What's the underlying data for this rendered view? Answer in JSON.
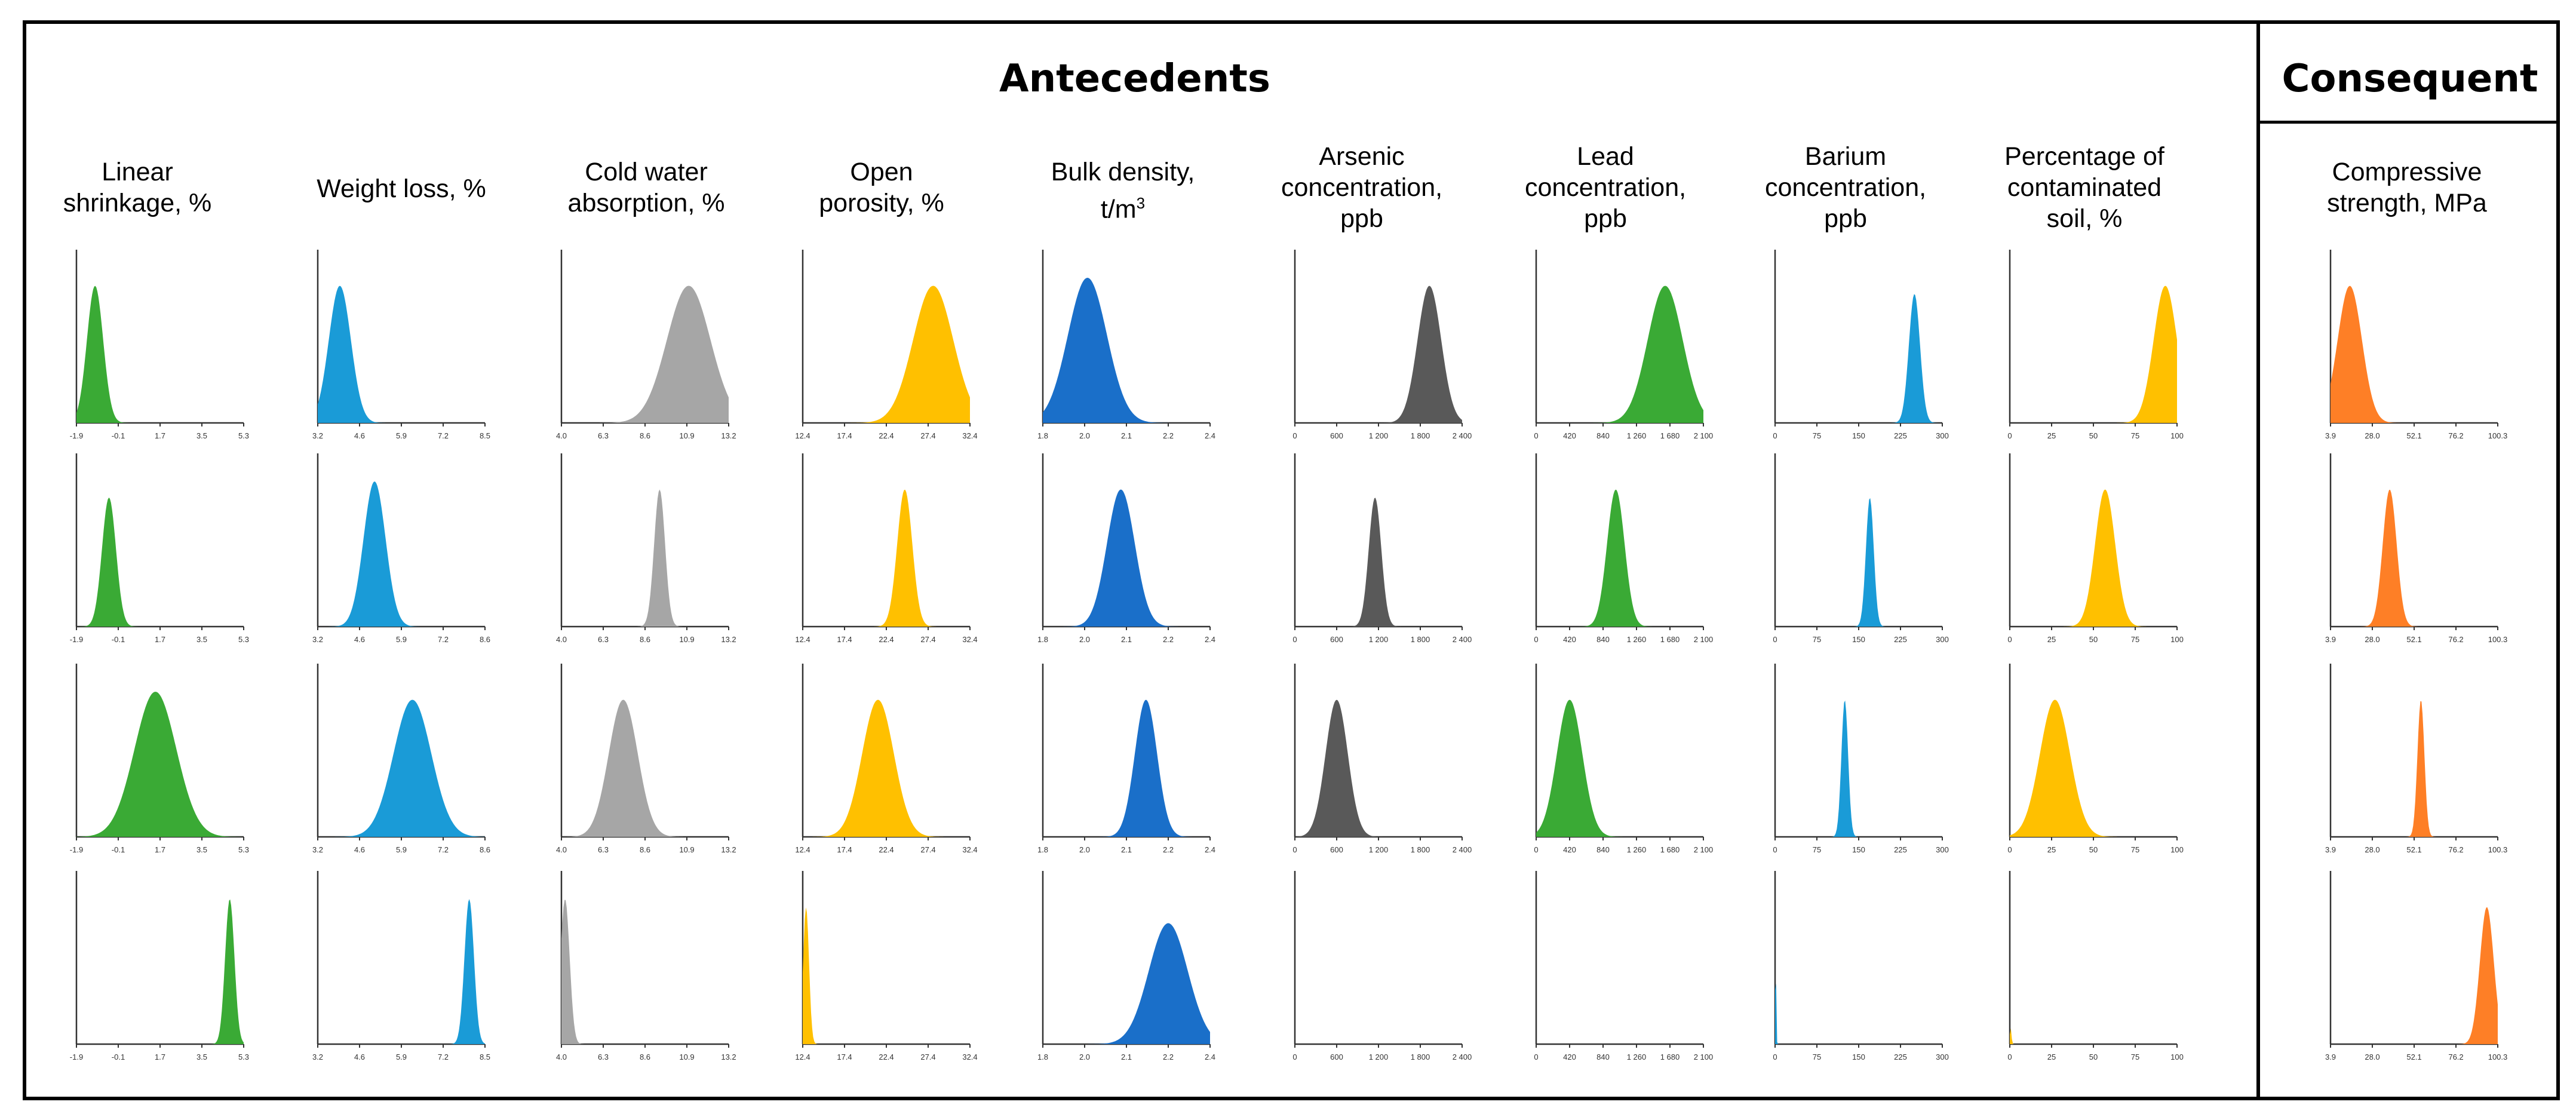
{
  "figure": {
    "antecedents_title": "Antecedents",
    "consequent_title": "Consequent"
  },
  "colors": {
    "green": "#3aaa35",
    "blue": "#1a9bd7",
    "gray": "#a6a6a6",
    "yellow": "#ffc000",
    "darkblue": "#1a6fc9",
    "darkgray": "#595959",
    "orange": "#fe7f26"
  },
  "chart_data": [
    {
      "type": "area",
      "title": "Linear shrinkage, %",
      "color": "#3aaa35",
      "ticks": [
        "-1.9",
        "-0.1",
        "1.7",
        "3.5",
        "5.3"
      ],
      "xlim": [
        -1.9,
        5.3
      ],
      "series": [
        {
          "peak": -1.1,
          "sd": 0.35,
          "max_density": 0.85
        },
        {
          "peak": -0.5,
          "sd": 0.3,
          "max_density": 0.8
        },
        {
          "peak": 1.5,
          "sd": 0.9,
          "max_density": 0.9
        },
        {
          "peak": 4.7,
          "sd": 0.2,
          "max_density": 0.9
        }
      ]
    },
    {
      "type": "area",
      "title": "Weight loss, %",
      "color": "#1a9bd7",
      "ticks": [
        "3.2",
        "4.6",
        "5.9",
        "7.2",
        "8.5"
      ],
      "xlim": [
        3.2,
        8.5
      ],
      "series": [
        {
          "peak": 3.9,
          "sd": 0.35,
          "max_density": 0.85
        },
        {
          "peak": 5.0,
          "sd": 0.35,
          "max_density": 0.9
        },
        {
          "peak": 6.2,
          "sd": 0.6,
          "max_density": 0.85
        },
        {
          "peak": 8.0,
          "sd": 0.15,
          "max_density": 0.9
        }
      ],
      "row_ticks": [
        [
          "3.2",
          "4.6",
          "5.9",
          "7.2",
          "8.5"
        ],
        [
          "3.2",
          "4.6",
          "5.9",
          "7.2",
          "8.6"
        ],
        [
          "3.2",
          "4.6",
          "5.9",
          "7.2",
          "8.6"
        ],
        [
          "3.2",
          "4.6",
          "5.9",
          "7.2",
          "8.5"
        ]
      ]
    },
    {
      "type": "area",
      "title": "Cold water absorption, %",
      "color": "#a6a6a6",
      "ticks": [
        "4.0",
        "6.3",
        "8.6",
        "10.9",
        "13.2"
      ],
      "xlim": [
        4.0,
        13.2
      ],
      "series": [
        {
          "peak": 11.0,
          "sd": 1.2,
          "max_density": 0.85
        },
        {
          "peak": 9.4,
          "sd": 0.3,
          "max_density": 0.85
        },
        {
          "peak": 7.4,
          "sd": 0.8,
          "max_density": 0.85
        },
        {
          "peak": 4.2,
          "sd": 0.25,
          "max_density": 0.9
        }
      ],
      "row_ticks": [
        [
          "4.0",
          "6.3",
          "8.6",
          "10.9",
          "13.2"
        ],
        [
          "4.0",
          "6.3",
          "8.6",
          "10.9",
          "13.2"
        ],
        [
          "4.0",
          "6.3",
          "8.6",
          "10.9",
          "13.2"
        ],
        [
          "4.0",
          "6.3",
          "8.6",
          "10.9",
          "13.2"
        ]
      ]
    },
    {
      "type": "area",
      "title": "Open porosity, %",
      "color": "#ffc000",
      "ticks": [
        "12.4",
        "17.4",
        "22.4",
        "27.4",
        "32.4"
      ],
      "xlim": [
        12.4,
        32.4
      ],
      "series": [
        {
          "peak": 28.0,
          "sd": 2.4,
          "max_density": 0.85
        },
        {
          "peak": 24.6,
          "sd": 0.9,
          "max_density": 0.85
        },
        {
          "peak": 21.4,
          "sd": 1.9,
          "max_density": 0.85
        },
        {
          "peak": 12.8,
          "sd": 0.35,
          "max_density": 0.85
        }
      ]
    },
    {
      "type": "area",
      "title": "Bulk density, t/m3",
      "color": "#1a6fc9",
      "ticks": [
        "1.8",
        "2.0",
        "2.1",
        "2.2",
        "2.4"
      ],
      "xlim": [
        1.8,
        2.4
      ],
      "series": [
        {
          "peak": 1.96,
          "sd": 0.07,
          "max_density": 0.9
        },
        {
          "peak": 2.08,
          "sd": 0.05,
          "max_density": 0.85
        },
        {
          "peak": 2.17,
          "sd": 0.04,
          "max_density": 0.85
        },
        {
          "peak": 2.25,
          "sd": 0.07,
          "max_density": 0.75
        }
      ],
      "row_ticks": [
        [
          "1.8",
          "2.0",
          "2.1",
          "2.2",
          "2.4"
        ],
        [
          "1.8",
          "2.0",
          "2.1",
          "2.2",
          "2.4"
        ],
        [
          "1.8",
          "2.0",
          "2.1",
          "2.2",
          "2.4"
        ],
        [
          "1.8",
          "2.0",
          "2.1",
          "2.2",
          "2.4"
        ]
      ]
    },
    {
      "type": "area",
      "title": "Arsenic concentration, ppb",
      "color": "#595959",
      "ticks": [
        "0",
        "600",
        "1 200",
        "1 800",
        "2 400"
      ],
      "xlim": [
        0,
        2400
      ],
      "series": [
        {
          "peak": 1930,
          "sd": 170,
          "max_density": 0.85
        },
        {
          "peak": 1150,
          "sd": 90,
          "max_density": 0.8
        },
        {
          "peak": 600,
          "sd": 160,
          "max_density": 0.85
        },
        {
          "peak": 10,
          "sd": 5,
          "max_density": 0.0
        }
      ],
      "row_ticks": [
        [
          "0",
          "600",
          "1 200",
          "1 800",
          "2 400"
        ],
        [
          "0",
          "600",
          "1 200",
          "1 800",
          "2 400"
        ],
        [
          "0",
          "600",
          "1 200",
          "1 800",
          "2 400"
        ],
        [
          "0",
          "600",
          "1 200",
          "1 800",
          "2 400"
        ]
      ]
    },
    {
      "type": "area",
      "title": "Lead concentration, ppb",
      "color": "#3aaa35",
      "ticks": [
        "0",
        "420",
        "840",
        "1 260",
        "1 680",
        "2 100"
      ],
      "xlim": [
        0,
        2100
      ],
      "series": [
        {
          "peak": 1620,
          "sd": 220,
          "max_density": 0.85
        },
        {
          "peak": 1000,
          "sd": 110,
          "max_density": 0.85
        },
        {
          "peak": 420,
          "sd": 160,
          "max_density": 0.85
        },
        {
          "peak": 5,
          "sd": 5,
          "max_density": 0.0
        }
      ]
    },
    {
      "type": "area",
      "title": "Barium concentration, ppb",
      "color": "#1a9bd7",
      "ticks": [
        "0",
        "75",
        "150",
        "225",
        "300"
      ],
      "xlim": [
        0,
        300
      ],
      "series": [
        {
          "peak": 250,
          "sd": 10,
          "max_density": 0.8
        },
        {
          "peak": 170,
          "sd": 7,
          "max_density": 0.8
        },
        {
          "peak": 125,
          "sd": 6,
          "max_density": 0.85
        },
        {
          "peak": 1,
          "sd": 1,
          "max_density": 0.55
        }
      ]
    },
    {
      "type": "area",
      "title": "Percentage of contaminated soil, %",
      "color": "#ffc000",
      "ticks": [
        "0",
        "25",
        "50",
        "75",
        "100"
      ],
      "xlim": [
        0,
        100
      ],
      "series": [
        {
          "peak": 93,
          "sd": 7,
          "max_density": 0.85
        },
        {
          "peak": 57,
          "sd": 6,
          "max_density": 0.85
        },
        {
          "peak": 27,
          "sd": 9,
          "max_density": 0.85
        },
        {
          "peak": 0.5,
          "sd": 0.5,
          "max_density": 0.1
        }
      ]
    },
    {
      "type": "area",
      "title": "Compressive strength, MPa",
      "color": "#fe7f26",
      "ticks": [
        "3.9",
        "28.0",
        "52.1",
        "76.2",
        "100.3"
      ],
      "xlim": [
        3.9,
        100.3
      ],
      "series": [
        {
          "peak": 15,
          "sd": 7,
          "max_density": 0.85
        },
        {
          "peak": 38,
          "sd": 4,
          "max_density": 0.85
        },
        {
          "peak": 56,
          "sd": 2,
          "max_density": 0.85
        },
        {
          "peak": 94,
          "sd": 4,
          "max_density": 0.85
        }
      ]
    }
  ],
  "column_titles": [
    [
      "Linear",
      "shrinkage, %"
    ],
    [
      "Weight loss, %"
    ],
    [
      "Cold water",
      "absorption, %"
    ],
    [
      "Open",
      "porosity, %"
    ],
    [
      "Bulk density,",
      "t/m3"
    ],
    [
      "Arsenic",
      "concentration,",
      "ppb"
    ],
    [
      "Lead",
      "concentration,",
      "ppb"
    ],
    [
      "Barium",
      "concentration,",
      "ppb"
    ],
    [
      "Percentage of",
      "contaminated",
      "soil, %"
    ],
    [
      "Compressive",
      "strength, MPa"
    ]
  ]
}
